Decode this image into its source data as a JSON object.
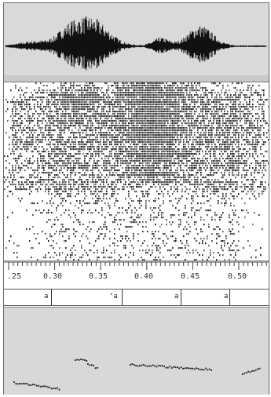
{
  "time_axis": {
    "tick_labels": [
      ".25",
      "0.30",
      "0.35",
      "0.40",
      "0.45",
      "0.50"
    ],
    "range": [
      0.245,
      0.525
    ]
  },
  "tier": {
    "intervals_marks": [
      "a",
      "ʼa",
      "a",
      "a"
    ]
  },
  "pitch_segments": [
    {
      "x0": 0.248,
      "x1": 0.298
    },
    {
      "x0": 0.318,
      "x1": 0.333
    },
    {
      "x0": 0.373,
      "x1": 0.438
    },
    {
      "x0": 0.49,
      "x1": 0.505
    }
  ],
  "colors": {
    "waveform_bg": "#d9d9d9",
    "pitch_bg": "#d8d8d8",
    "ink": "#1a1a1a"
  }
}
